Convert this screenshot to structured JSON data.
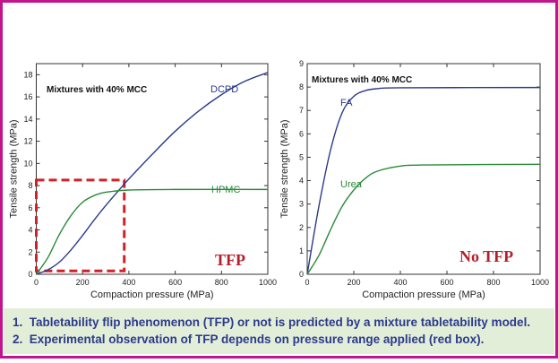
{
  "chart_data": [
    {
      "type": "line",
      "annotation": "Mixtures with 40% MCC",
      "xlabel": "Compaction pressure (MPa)",
      "ylabel": "Tensile strength (MPa)",
      "xlim": [
        0,
        1000
      ],
      "ylim": [
        0,
        19
      ],
      "xticks": [
        0,
        200,
        400,
        600,
        800,
        1000
      ],
      "yticks": [
        0,
        2,
        4,
        6,
        8,
        10,
        12,
        14,
        16,
        18
      ],
      "grid": false,
      "badge": "TFP",
      "highlight_box": {
        "x": [
          0,
          380
        ],
        "y": [
          0.3,
          8.5
        ],
        "color": "#d0202a",
        "style": "dashed"
      },
      "series": [
        {
          "name": "DCPD",
          "color": "#2b3a8c",
          "x": [
            0,
            50,
            100,
            150,
            200,
            250,
            300,
            370,
            400,
            500,
            600,
            700,
            800,
            900,
            1000
          ],
          "y": [
            0,
            0.4,
            1.1,
            2.2,
            3.5,
            4.9,
            6.2,
            7.9,
            8.6,
            10.8,
            12.9,
            14.7,
            16.2,
            17.4,
            18.2
          ]
        },
        {
          "name": "HPMC",
          "color": "#2a8a3a",
          "x": [
            0,
            50,
            100,
            150,
            200,
            250,
            300,
            400,
            600,
            1000
          ],
          "y": [
            0,
            1.5,
            3.6,
            5.3,
            6.5,
            7.1,
            7.4,
            7.6,
            7.65,
            7.65
          ]
        }
      ]
    },
    {
      "type": "line",
      "annotation": "Mixtures with 40% MCC",
      "xlabel": "Compaction pressure (MPa)",
      "ylabel": "Tensile strength (MPa)",
      "xlim": [
        0,
        1000
      ],
      "ylim": [
        0,
        9
      ],
      "xticks": [
        0,
        200,
        400,
        600,
        800,
        1000
      ],
      "yticks": [
        0,
        1,
        2,
        3,
        4,
        5,
        6,
        7,
        8,
        9
      ],
      "grid": false,
      "badge": "No TFP",
      "series": [
        {
          "name": "FA",
          "color": "#2b3a8c",
          "x": [
            0,
            50,
            100,
            150,
            200,
            250,
            300,
            400,
            1000
          ],
          "y": [
            0,
            2.9,
            5.3,
            6.9,
            7.6,
            7.85,
            7.93,
            7.97,
            7.98
          ]
        },
        {
          "name": "Urea",
          "color": "#2a8a3a",
          "x": [
            0,
            50,
            100,
            150,
            200,
            250,
            300,
            400,
            500,
            1000
          ],
          "y": [
            0,
            0.8,
            1.9,
            2.9,
            3.6,
            4.1,
            4.4,
            4.62,
            4.67,
            4.7
          ]
        }
      ]
    }
  ],
  "notes": [
    "1.  Tabletability flip phenomenon (TFP) or not is predicted by a mixture tabletability model.",
    "2.  Experimental observation of TFP depends on pressure range applied (red box)."
  ],
  "colors": {
    "frame": "#c0168c",
    "notes_bg": "#e2eed8",
    "notes_text": "#2b3a8c",
    "badge": "#b3202a"
  }
}
